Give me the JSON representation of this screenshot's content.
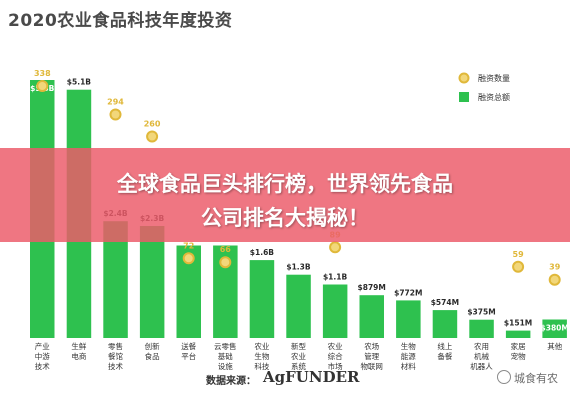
{
  "title": "2020农业食品科技年度投资",
  "banner": {
    "line1": "全球食品巨头排行榜，世界领先食品",
    "line2": "公司排名大揭秘！"
  },
  "source": {
    "label": "数据来源：",
    "logo": "AgFUNDER"
  },
  "watermark": "城食有农",
  "colors": {
    "bar": "#2ec14f",
    "dot_fill": "#f2d77a",
    "dot_ring": "#e0b83a",
    "bar_label": "#2a2a2a",
    "dot_label": "#e0b83a"
  },
  "chart_data": {
    "type": "bar",
    "legend_placement": "top-right",
    "legend": [
      "融资数量",
      "融资总额"
    ],
    "categories": [
      "产业中游技术",
      "生鲜电商",
      "零售餐馆技术",
      "创新食品",
      "送餐平台",
      "云零售基础设施",
      "农业生物科技",
      "新型农业系统",
      "农业综合市场",
      "农场管理物联网",
      "生物能源材料",
      "线上备餐",
      "农用机械机器人",
      "家居宠物",
      "其他"
    ],
    "category_lines": [
      [
        "产业",
        "中游",
        "技术"
      ],
      [
        "生鲜",
        "电商"
      ],
      [
        "零售",
        "餐馆",
        "技术"
      ],
      [
        "创新",
        "食品"
      ],
      [
        "送餐",
        "平台"
      ],
      [
        "云零售",
        "基础",
        "设施"
      ],
      [
        "农业",
        "生物",
        "科技"
      ],
      [
        "新型",
        "农业",
        "系统"
      ],
      [
        "农业",
        "综合",
        "市场"
      ],
      [
        "农场",
        "管理",
        "物联网"
      ],
      [
        "生物",
        "能源",
        "材料"
      ],
      [
        "线上",
        "备餐"
      ],
      [
        "农用",
        "机械",
        "机器人"
      ],
      [
        "家居",
        "宠物"
      ],
      [
        "其他"
      ]
    ],
    "series": [
      {
        "name": "融资总额",
        "values": [
          5.3,
          5.1,
          2.4,
          2.3,
          1.9,
          1.9,
          1.6,
          1.3,
          1.1,
          0.879,
          0.772,
          0.574,
          0.375,
          0.151,
          0.38
        ],
        "labels": [
          "$5.3B",
          "$5.1B",
          "$2.4B",
          "$2.3B",
          "",
          "",
          "$1.6B",
          "$1.3B",
          "$1.1B",
          "$879M",
          "$772M",
          "$574M",
          "$375M",
          "$151M",
          "$380M"
        ]
      },
      {
        "name": "融资数量",
        "values": [
          338,
          null,
          294,
          260,
          72,
          66,
          null,
          null,
          89,
          null,
          null,
          null,
          null,
          59,
          39
        ],
        "labels": [
          "338",
          "",
          "294",
          "260",
          "72",
          "66",
          "",
          "",
          "89",
          "",
          "",
          "",
          "",
          "59",
          "39"
        ]
      }
    ]
  }
}
